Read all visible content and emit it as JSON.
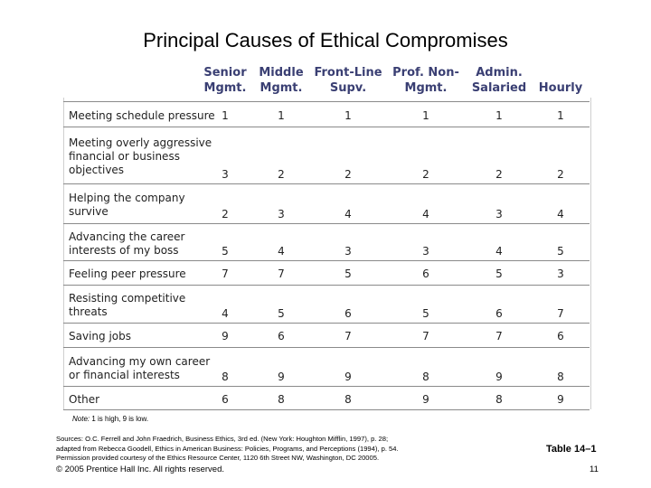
{
  "title": "Principal Causes of Ethical Compromises",
  "columns": [
    [
      "Senior",
      "Mgmt."
    ],
    [
      "Middle",
      "Mgmt."
    ],
    [
      "Front-Line",
      "Supv."
    ],
    [
      "Prof. Non-",
      "Mgmt."
    ],
    [
      "Admin.",
      "Salaried"
    ],
    [
      "Hourly"
    ]
  ],
  "rows": [
    {
      "label": [
        "Meeting schedule pressure"
      ],
      "values": [
        "1",
        "1",
        "1",
        "1",
        "1",
        "1"
      ]
    },
    {
      "label": [
        "Meeting overly aggressive",
        "financial or business",
        "objectives"
      ],
      "values": [
        "3",
        "2",
        "2",
        "2",
        "2",
        "2"
      ]
    },
    {
      "label": [
        "Helping the company",
        "survive"
      ],
      "values": [
        "2",
        "3",
        "4",
        "4",
        "3",
        "4"
      ]
    },
    {
      "label": [
        "Advancing the career",
        "interests of my boss"
      ],
      "values": [
        "5",
        "4",
        "3",
        "3",
        "4",
        "5"
      ]
    },
    {
      "label": [
        "Feeling peer pressure"
      ],
      "values": [
        "7",
        "7",
        "5",
        "6",
        "5",
        "3"
      ]
    },
    {
      "label": [
        "Resisting competitive",
        "threats"
      ],
      "values": [
        "4",
        "5",
        "6",
        "5",
        "6",
        "7"
      ]
    },
    {
      "label": [
        "Saving jobs"
      ],
      "values": [
        "9",
        "6",
        "7",
        "7",
        "7",
        "6"
      ]
    },
    {
      "label": [
        "Advancing my own career",
        "or financial interests"
      ],
      "values": [
        "8",
        "9",
        "9",
        "8",
        "9",
        "8"
      ]
    },
    {
      "label": [
        "Other"
      ],
      "values": [
        "6",
        "8",
        "8",
        "9",
        "8",
        "9"
      ]
    }
  ],
  "note": {
    "prefix": "Note:",
    "text": " 1 is high, 9 is low."
  },
  "sources": [
    "Sources: O.C. Ferrell and John Fraedrich, Business Ethics, 3rd ed. (New York: Houghton Mifflin, 1997), p. 28;",
    "adapted from Rebecca Goodell, Ethics in American Business: Policies, Programs, and Perceptions (1994), p. 54.",
    "Permission provided courtesy of the Ethics Resource Center, 1120 6th Street NW, Washington, DC 20005."
  ],
  "table_number": "Table 14–1",
  "copyright": "© 2005 Prentice Hall Inc. All rights reserved.",
  "page_number": "11"
}
